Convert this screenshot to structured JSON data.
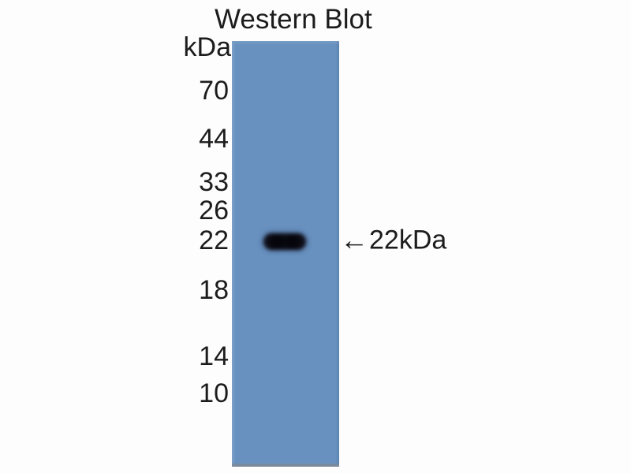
{
  "figure": {
    "title": "Western Blot",
    "unit_label": "kDa",
    "technique": "western-blot",
    "ladder_markers": [
      {
        "label": "70"
      },
      {
        "label": "44"
      },
      {
        "label": "33"
      },
      {
        "label": "26"
      },
      {
        "label": "22"
      },
      {
        "label": "18"
      },
      {
        "label": "14"
      },
      {
        "label": "10"
      }
    ],
    "lanes": 1,
    "bands": [
      {
        "approx_kda": "22"
      }
    ],
    "annotation": {
      "arrow": "←",
      "label": "22kDa"
    },
    "colors": {
      "lane": "#6891c0",
      "band": "#141420",
      "text": "#1c1c1c",
      "background": "#fdfdfd"
    }
  }
}
